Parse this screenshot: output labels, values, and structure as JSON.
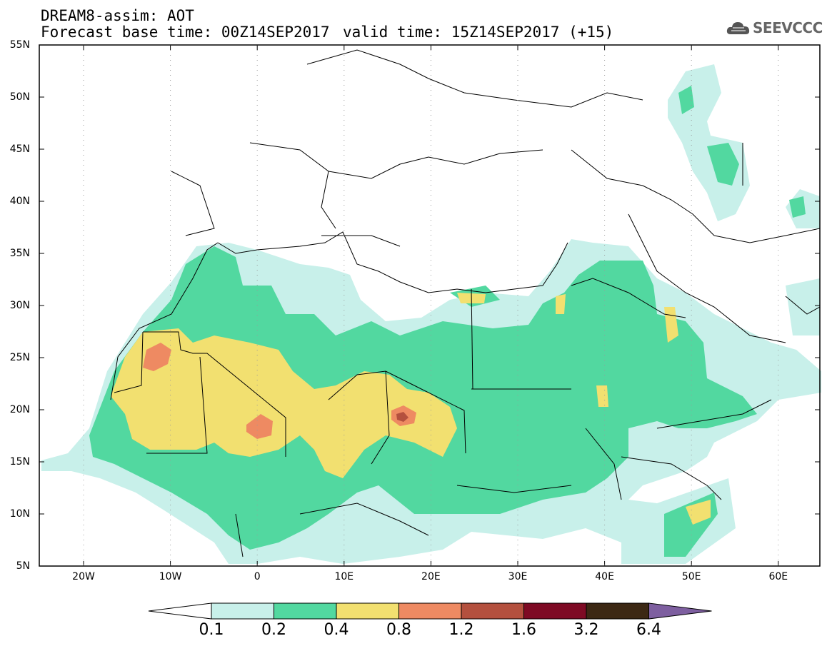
{
  "header": {
    "title": "DREAM8-assim: AOT",
    "base_time": "Forecast base time: 00Z14SEP2017",
    "valid_time": "valid time: 15Z14SEP2017 (+15)"
  },
  "logo": {
    "text": "SEEVCCC",
    "icon": "cloud-icon"
  },
  "map": {
    "lat_labels": [
      "55N",
      "50N",
      "45N",
      "40N",
      "35N",
      "30N",
      "25N",
      "20N",
      "15N",
      "10N",
      "5N"
    ],
    "lon_labels": [
      "20W",
      "10W",
      "0",
      "10E",
      "20E",
      "30E",
      "40E",
      "50E",
      "60E"
    ]
  },
  "colorbar": {
    "labels": [
      "0.1",
      "0.2",
      "0.4",
      "0.8",
      "1.2",
      "1.6",
      "3.2",
      "6.4"
    ],
    "colors": [
      "#c8f0ea",
      "#52d8a0",
      "#f2e070",
      "#ee8a62",
      "#b4503e",
      "#7e0a24",
      "#3c2814",
      "#7e5fa0"
    ]
  }
}
